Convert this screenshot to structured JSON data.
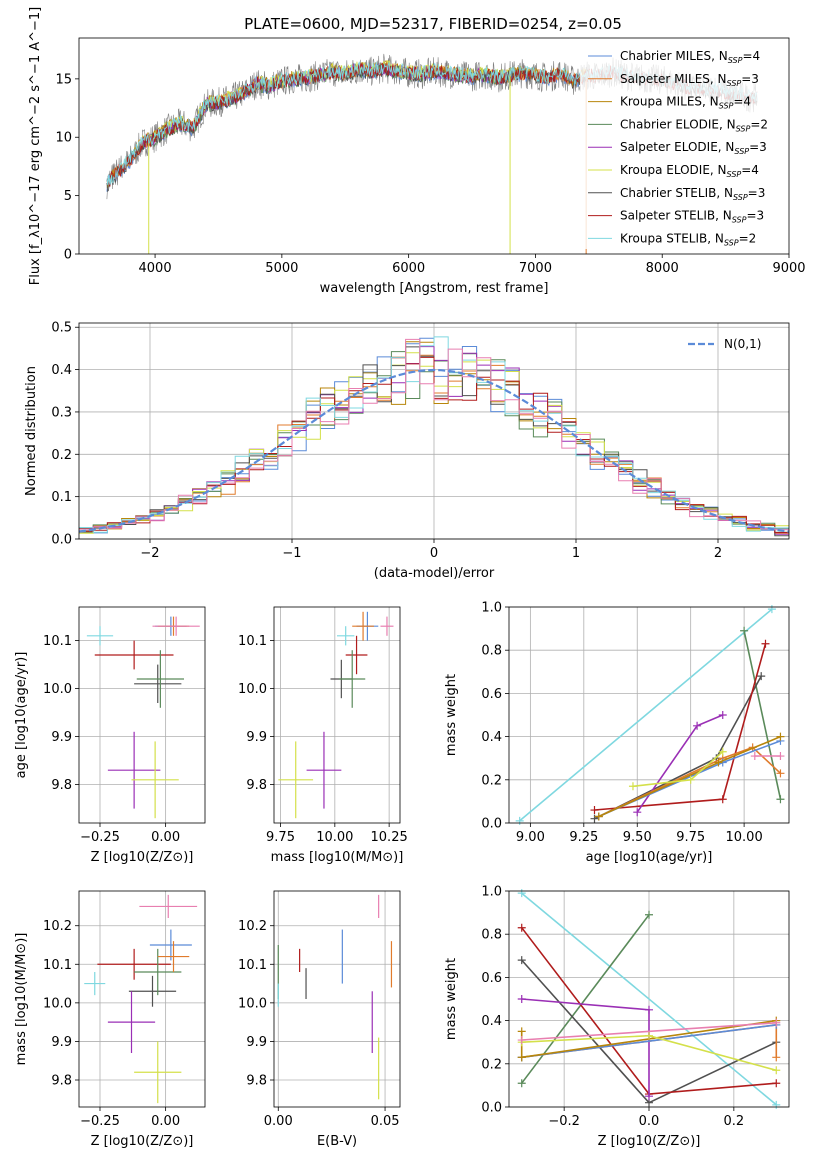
{
  "chart_data": [
    {
      "id": "spectrum",
      "type": "line",
      "title": "PLATE=0600, MJD=52317, FIBERID=0254, z=0.05",
      "xlabel": "wavelength [Angstrom, rest frame]",
      "ylabel": "Flux [f_λ10^−17 erg cm^−2 s^−1 A^−1]",
      "xlim": [
        3400,
        9000
      ],
      "ylim": [
        0,
        18.5
      ],
      "xticks": [
        4000,
        5000,
        6000,
        7000,
        8000,
        9000
      ],
      "yticks": [
        0,
        5,
        10,
        15
      ],
      "grid": false,
      "legend_position": "right",
      "series_anchor": {
        "x": [
          3620,
          3700,
          3800,
          3900,
          4000,
          4100,
          4200,
          4300,
          4400,
          4500,
          4600,
          4700,
          4800,
          4900,
          5000,
          5100,
          5200,
          5300,
          5400,
          5500,
          5600,
          5700,
          5800,
          5900,
          6000,
          6100,
          6200,
          6300,
          6400,
          6500,
          6600,
          6700,
          6800,
          6900,
          7000,
          7100,
          7200,
          7300,
          7400,
          7500,
          7600,
          7700,
          7800,
          7900,
          8000,
          8100,
          8200,
          8300,
          8400,
          8500,
          8600,
          8700,
          8750
        ],
        "y": [
          6.0,
          7.0,
          8.0,
          9.5,
          10.0,
          10.7,
          11.2,
          10.8,
          12.8,
          13.0,
          13.3,
          13.8,
          14.6,
          14.4,
          14.8,
          15.0,
          15.1,
          15.3,
          15.6,
          15.4,
          15.8,
          15.6,
          15.9,
          15.7,
          15.5,
          15.4,
          15.6,
          15.5,
          15.3,
          15.2,
          15.4,
          15.1,
          15.3,
          15.5,
          15.3,
          15.1,
          15.5,
          14.8,
          15.3,
          15.2,
          15.6,
          15.3,
          15.1,
          15.0,
          14.9,
          14.6,
          14.3,
          14.0,
          14.2,
          13.8,
          13.6,
          13.4,
          13.5
        ]
      },
      "series": [
        {
          "name": "Chabrier MILES, N_SSP=4",
          "color": "#5b8bd8",
          "x_range": [
            3620,
            7400
          ]
        },
        {
          "name": "Salpeter MILES, N_SSP=3",
          "color": "#e07b2c",
          "x_range": [
            3620,
            7400
          ]
        },
        {
          "name": "Kroupa MILES, N_SSP=4",
          "color": "#b8860b",
          "x_range": [
            3620,
            7400
          ]
        },
        {
          "name": "Chabrier ELODIE, N_SSP=2",
          "color": "#5a8a5a",
          "x_range": [
            3900,
            6800
          ]
        },
        {
          "name": "Salpeter ELODIE, N_SSP=3",
          "color": "#9a2fb5",
          "x_range": [
            3900,
            6800
          ]
        },
        {
          "name": "Kroupa ELODIE, N_SSP=4",
          "color": "#d4e04a",
          "x_range": [
            3900,
            6800
          ]
        },
        {
          "name": "Chabrier STELIB, N_SSP=3",
          "color": "#505050",
          "x_range": [
            3620,
            8750
          ]
        },
        {
          "name": "Salpeter STELIB, N_SSP=3",
          "color": "#b01c1c",
          "x_range": [
            3620,
            8750
          ]
        },
        {
          "name": "Kroupa STELIB, N_SSP=2",
          "color": "#7fd8e0",
          "x_range": [
            3620,
            8750
          ]
        }
      ]
    },
    {
      "id": "residuals",
      "type": "line",
      "xlabel": "(data-model)/error",
      "ylabel": "Normed distribution",
      "xlim": [
        -2.5,
        2.5
      ],
      "ylim": [
        0,
        0.51
      ],
      "xticks": [
        -2,
        -1,
        0,
        1,
        2
      ],
      "yticks": [
        0.0,
        0.1,
        0.2,
        0.3,
        0.4,
        0.5
      ],
      "grid": true,
      "legend_position": "top-right",
      "gauss_label": "N(0,1)",
      "gauss_color": "#5b8bd8",
      "bin_edges_start": -2.5,
      "bin_width": 0.1,
      "bins": 50,
      "hist_colors": [
        "#5b8bd8",
        "#e07b2c",
        "#b8860b",
        "#5a8a5a",
        "#9a2fb5",
        "#d4e04a",
        "#505050",
        "#b01c1c",
        "#7fd8e0",
        "#e87fb0"
      ]
    },
    {
      "id": "z-age",
      "type": "scatter",
      "xlabel": "Z [log10(Z/Z⊙)]",
      "ylabel": "age [log10(age/yr)]",
      "xlim": [
        -0.33,
        0.15
      ],
      "ylim": [
        9.72,
        10.17
      ],
      "xticks": [
        -0.25,
        0.0
      ],
      "yticks": [
        9.8,
        9.9,
        10.0,
        10.1
      ],
      "grid": true,
      "errorbars": [
        {
          "x": -0.25,
          "y": 10.11,
          "xerr": 0.05,
          "yerr": 0.02,
          "color": "#7fd8e0"
        },
        {
          "x": -0.12,
          "y": 10.07,
          "xerr": 0.15,
          "yerr": 0.03,
          "color": "#b01c1c"
        },
        {
          "x": -0.03,
          "y": 10.01,
          "xerr": 0.09,
          "yerr": 0.04,
          "color": "#505050"
        },
        {
          "x": -0.02,
          "y": 10.02,
          "xerr": 0.09,
          "yerr": 0.06,
          "color": "#5a8a5a"
        },
        {
          "x": 0.02,
          "y": 10.13,
          "xerr": 0.06,
          "yerr": 0.02,
          "color": "#5b8bd8"
        },
        {
          "x": 0.03,
          "y": 10.13,
          "xerr": 0.06,
          "yerr": 0.02,
          "color": "#e07b2c"
        },
        {
          "x": 0.04,
          "y": 10.13,
          "xerr": 0.09,
          "yerr": 0.02,
          "color": "#e87fb0"
        },
        {
          "x": -0.12,
          "y": 9.83,
          "xerr": 0.1,
          "yerr": 0.08,
          "color": "#9a2fb5"
        },
        {
          "x": -0.04,
          "y": 9.81,
          "xerr": 0.09,
          "yerr": 0.08,
          "color": "#d4e04a"
        }
      ]
    },
    {
      "id": "mass-age",
      "type": "scatter",
      "xlabel": "mass [log10(M/M⊙)]",
      "ylabel": "",
      "xlim": [
        9.72,
        10.3
      ],
      "ylim": [
        9.72,
        10.17
      ],
      "xticks": [
        9.75,
        10.0,
        10.25
      ],
      "yticks": [
        9.8,
        9.9,
        10.0,
        10.1
      ],
      "grid": true,
      "errorbars": [
        {
          "x": 10.05,
          "y": 10.11,
          "xerr": 0.04,
          "yerr": 0.02,
          "color": "#7fd8e0"
        },
        {
          "x": 10.1,
          "y": 10.07,
          "xerr": 0.05,
          "yerr": 0.04,
          "color": "#b01c1c"
        },
        {
          "x": 10.03,
          "y": 10.02,
          "xerr": 0.05,
          "yerr": 0.04,
          "color": "#505050"
        },
        {
          "x": 10.08,
          "y": 10.02,
          "xerr": 0.06,
          "yerr": 0.06,
          "color": "#5a8a5a"
        },
        {
          "x": 10.15,
          "y": 10.13,
          "xerr": 0.05,
          "yerr": 0.03,
          "color": "#5b8bd8"
        },
        {
          "x": 10.13,
          "y": 10.13,
          "xerr": 0.05,
          "yerr": 0.03,
          "color": "#e07b2c"
        },
        {
          "x": 10.24,
          "y": 10.13,
          "xerr": 0.03,
          "yerr": 0.02,
          "color": "#e87fb0"
        },
        {
          "x": 9.95,
          "y": 9.83,
          "xerr": 0.08,
          "yerr": 0.08,
          "color": "#9a2fb5"
        },
        {
          "x": 9.82,
          "y": 9.81,
          "xerr": 0.08,
          "yerr": 0.08,
          "color": "#d4e04a"
        }
      ]
    },
    {
      "id": "age-weight",
      "type": "line",
      "xlabel": "age [log10(age/yr)]",
      "ylabel": "mass weight",
      "xlim": [
        8.9,
        10.21
      ],
      "ylim": [
        0,
        1.0
      ],
      "xticks": [
        9.0,
        9.25,
        9.5,
        9.75,
        10.0
      ],
      "yticks": [
        0.0,
        0.2,
        0.4,
        0.6,
        0.8,
        1.0
      ],
      "grid": true,
      "lines": [
        {
          "color": "#7fd8e0",
          "x": [
            8.95,
            10.13
          ],
          "y": [
            0.01,
            0.99
          ]
        },
        {
          "color": "#5a8a5a",
          "x": [
            10.0,
            10.17
          ],
          "y": [
            0.89,
            0.11
          ]
        },
        {
          "color": "#505050",
          "x": [
            9.3,
            9.87,
            10.08
          ],
          "y": [
            0.02,
            0.3,
            0.68
          ]
        },
        {
          "color": "#b01c1c",
          "x": [
            9.3,
            9.9,
            10.1
          ],
          "y": [
            0.06,
            0.11,
            0.83
          ]
        },
        {
          "color": "#9a2fb5",
          "x": [
            9.5,
            9.78,
            9.9
          ],
          "y": [
            0.05,
            0.45,
            0.5
          ]
        },
        {
          "color": "#e07b2c",
          "x": [
            9.32,
            9.9,
            10.04,
            10.17
          ],
          "y": [
            0.03,
            0.3,
            0.35,
            0.23
          ]
        },
        {
          "color": "#5b8bd8",
          "x": [
            9.32,
            9.9,
            10.17
          ],
          "y": [
            0.03,
            0.28,
            0.38
          ]
        },
        {
          "color": "#b8860b",
          "x": [
            9.32,
            9.88,
            10.17
          ],
          "y": [
            0.03,
            0.28,
            0.4
          ]
        },
        {
          "color": "#d4e04a",
          "x": [
            9.48,
            9.75,
            9.9
          ],
          "y": [
            0.17,
            0.2,
            0.33
          ]
        },
        {
          "color": "#e87fb0",
          "x": [
            10.05,
            10.17
          ],
          "y": [
            0.31,
            0.31
          ]
        }
      ]
    },
    {
      "id": "z-mass",
      "type": "scatter",
      "xlabel": "Z [log10(Z/Z⊙)]",
      "ylabel": "mass [log10(M/M⊙)]",
      "xlim": [
        -0.33,
        0.15
      ],
      "ylim": [
        9.73,
        10.29
      ],
      "xticks": [
        -0.25,
        0.0
      ],
      "yticks": [
        9.8,
        9.9,
        10.0,
        10.1,
        10.2
      ],
      "grid": true,
      "errorbars": [
        {
          "x": -0.27,
          "y": 10.05,
          "xerr": 0.04,
          "yerr": 0.03,
          "color": "#7fd8e0"
        },
        {
          "x": -0.12,
          "y": 10.1,
          "xerr": 0.14,
          "yerr": 0.04,
          "color": "#b01c1c"
        },
        {
          "x": -0.05,
          "y": 10.03,
          "xerr": 0.09,
          "yerr": 0.04,
          "color": "#505050"
        },
        {
          "x": -0.03,
          "y": 10.08,
          "xerr": 0.09,
          "yerr": 0.06,
          "color": "#5a8a5a"
        },
        {
          "x": 0.02,
          "y": 10.15,
          "xerr": 0.08,
          "yerr": 0.04,
          "color": "#5b8bd8"
        },
        {
          "x": 0.03,
          "y": 10.12,
          "xerr": 0.06,
          "yerr": 0.04,
          "color": "#e07b2c"
        },
        {
          "x": 0.01,
          "y": 10.25,
          "xerr": 0.11,
          "yerr": 0.03,
          "color": "#e87fb0"
        },
        {
          "x": -0.13,
          "y": 9.95,
          "xerr": 0.09,
          "yerr": 0.08,
          "color": "#9a2fb5"
        },
        {
          "x": -0.03,
          "y": 9.82,
          "xerr": 0.09,
          "yerr": 0.08,
          "color": "#d4e04a"
        }
      ]
    },
    {
      "id": "ebv-mass",
      "type": "scatter",
      "xlabel": "E(B-V)",
      "ylabel": "",
      "xlim": [
        -0.002,
        0.057
      ],
      "ylim": [
        9.73,
        10.29
      ],
      "xticks": [
        0.0,
        0.05
      ],
      "yticks": [
        9.8,
        9.9,
        10.0,
        10.1,
        10.2
      ],
      "grid": true,
      "errorbars": [
        {
          "x": 0.0,
          "y": 10.08,
          "xerr": 0.0,
          "yerr": 0.07,
          "color": "#5a8a5a"
        },
        {
          "x": 0.0,
          "y": 10.02,
          "xerr": 0.0,
          "yerr": 0.03,
          "color": "#7fd8e0"
        },
        {
          "x": 0.01,
          "y": 10.11,
          "xerr": 0.0,
          "yerr": 0.03,
          "color": "#b01c1c"
        },
        {
          "x": 0.013,
          "y": 10.05,
          "xerr": 0.0,
          "yerr": 0.04,
          "color": "#505050"
        },
        {
          "x": 0.03,
          "y": 10.12,
          "xerr": 0.0,
          "yerr": 0.07,
          "color": "#5b8bd8"
        },
        {
          "x": 0.044,
          "y": 9.95,
          "xerr": 0.0,
          "yerr": 0.08,
          "color": "#9a2fb5"
        },
        {
          "x": 0.047,
          "y": 10.25,
          "xerr": 0.0,
          "yerr": 0.03,
          "color": "#e87fb0"
        },
        {
          "x": 0.047,
          "y": 9.83,
          "xerr": 0.0,
          "yerr": 0.08,
          "color": "#d4e04a"
        },
        {
          "x": 0.053,
          "y": 10.1,
          "xerr": 0.0,
          "yerr": 0.06,
          "color": "#e07b2c"
        }
      ]
    },
    {
      "id": "z-weight",
      "type": "line",
      "xlabel": "Z [log10(Z/Z⊙)]",
      "ylabel": "mass weight",
      "xlim": [
        -0.33,
        0.33
      ],
      "ylim": [
        0,
        1.0
      ],
      "xticks": [
        -0.2,
        0.0,
        0.2
      ],
      "yticks": [
        0.0,
        0.2,
        0.4,
        0.6,
        0.8,
        1.0
      ],
      "grid": true,
      "lines": [
        {
          "color": "#7fd8e0",
          "x": [
            -0.3,
            0.3
          ],
          "y": [
            0.99,
            0.01
          ]
        },
        {
          "color": "#5a8a5a",
          "x": [
            -0.3,
            0.0
          ],
          "y": [
            0.11,
            0.89
          ]
        },
        {
          "color": "#505050",
          "x": [
            -0.3,
            0.0,
            0.3
          ],
          "y": [
            0.68,
            0.02,
            0.3
          ]
        },
        {
          "color": "#b01c1c",
          "x": [
            -0.3,
            0.0,
            0.3
          ],
          "y": [
            0.83,
            0.06,
            0.11
          ]
        },
        {
          "color": "#9a2fb5",
          "x": [
            -0.3,
            0.0,
            0.0
          ],
          "y": [
            0.5,
            0.45,
            0.05
          ]
        },
        {
          "color": "#e07b2c",
          "x": [
            -0.3,
            0.3,
            0.3
          ],
          "y": [
            0.23,
            0.38,
            0.23
          ]
        },
        {
          "color": "#5b8bd8",
          "x": [
            -0.3,
            0.3
          ],
          "y": [
            0.23,
            0.38
          ]
        },
        {
          "color": "#b8860b",
          "x": [
            -0.3,
            -0.3,
            0.3
          ],
          "y": [
            0.35,
            0.23,
            0.4
          ]
        },
        {
          "color": "#d4e04a",
          "x": [
            -0.3,
            0.0,
            0.3
          ],
          "y": [
            0.3,
            0.33,
            0.17
          ]
        },
        {
          "color": "#e87fb0",
          "x": [
            -0.3,
            0.3
          ],
          "y": [
            0.31,
            0.39
          ]
        }
      ]
    }
  ]
}
